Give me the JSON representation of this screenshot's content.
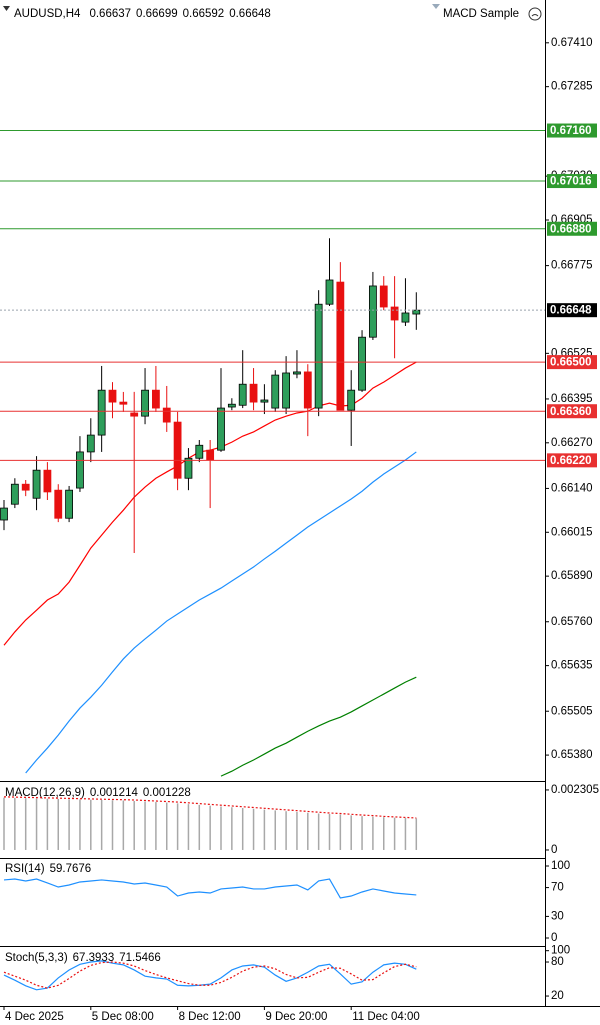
{
  "expert": "MACD Sample",
  "chart_data": [
    {
      "type": "candlestick",
      "title": "AUDUSD,H4",
      "categories": [
        "4 Dec 2025",
        null,
        null,
        null,
        null,
        null,
        null,
        null,
        "5 Dec 08:00",
        null,
        null,
        null,
        null,
        null,
        null,
        null,
        "8 Dec 12:00",
        null,
        null,
        null,
        null,
        null,
        null,
        null,
        "9 Dec 20:00",
        null,
        null,
        null,
        null,
        null,
        null,
        null,
        "11 Dec 04:00",
        null,
        null,
        null,
        null,
        null,
        null
      ],
      "open": [
        0.6605,
        0.66095,
        0.66152,
        0.66112,
        0.66192,
        0.66135,
        0.66055,
        0.66141,
        0.66244,
        0.66292,
        0.6642,
        0.66386,
        0.66355,
        0.66346,
        0.6642,
        0.66369,
        0.66329,
        0.66169,
        0.66226,
        0.66249,
        0.66249,
        0.66372,
        0.66377,
        0.66437,
        0.66386,
        0.66369,
        0.66369,
        0.66466,
        0.66472,
        0.66369,
        0.66665,
        0.66728,
        0.66363,
        0.6642,
        0.66571,
        0.66717,
        0.66657,
        0.66614,
        0.66637
      ],
      "high": [
        0.66107,
        0.66169,
        0.66164,
        0.66232,
        0.66215,
        0.66152,
        0.66147,
        0.66289,
        0.6634,
        0.66489,
        0.66443,
        0.66415,
        0.66415,
        0.66483,
        0.66489,
        0.66432,
        0.66358,
        0.66255,
        0.66278,
        0.66278,
        0.66483,
        0.66397,
        0.66534,
        0.66483,
        0.66437,
        0.66477,
        0.66517,
        0.66534,
        0.66494,
        0.66705,
        0.66853,
        0.66785,
        0.66477,
        0.66591,
        0.66757,
        0.66745,
        0.66745,
        0.66739,
        0.66699
      ],
      "low": [
        0.66021,
        0.66084,
        0.66118,
        0.66078,
        0.66107,
        0.66044,
        0.66044,
        0.6613,
        0.66215,
        0.66244,
        0.6634,
        0.66358,
        0.65956,
        0.66323,
        0.66358,
        0.66301,
        0.66135,
        0.66135,
        0.66215,
        0.66084,
        0.66244,
        0.66363,
        0.66369,
        0.66363,
        0.66352,
        0.66358,
        0.66352,
        0.66454,
        0.66289,
        0.66346,
        0.6666,
        0.66363,
        0.66261,
        0.66415,
        0.66563,
        0.66648,
        0.66511,
        0.66603,
        0.66592
      ],
      "close": [
        0.66084,
        0.66152,
        0.66135,
        0.66192,
        0.6613,
        0.66055,
        0.66135,
        0.66244,
        0.66292,
        0.6642,
        0.66386,
        0.6638,
        0.66346,
        0.6642,
        0.66369,
        0.66329,
        0.66169,
        0.66226,
        0.66263,
        0.66221,
        0.66369,
        0.6638,
        0.66437,
        0.66386,
        0.66392,
        0.66463,
        0.66469,
        0.66472,
        0.66369,
        0.66665,
        0.66734,
        0.66363,
        0.6642,
        0.66571,
        0.66717,
        0.66657,
        0.6662,
        0.6664,
        0.66648
      ],
      "bull_color": "#2e9e5b",
      "bear_color": "#e81010",
      "series": [
        {
          "color": "#ff0000",
          "values": [
            0.65693,
            0.65731,
            0.65765,
            0.65793,
            0.65822,
            0.65839,
            0.65873,
            0.65921,
            0.6597,
            0.66007,
            0.66044,
            0.66078,
            0.66115,
            0.66144,
            0.66169,
            0.66187,
            0.66204,
            0.66226,
            0.66244,
            0.66249,
            0.66258,
            0.66272,
            0.66289,
            0.66301,
            0.66318,
            0.66335,
            0.66346,
            0.66355,
            0.6636,
            0.66375,
            0.66383,
            0.66375,
            0.66377,
            0.66397,
            0.66426,
            0.66443,
            0.66463,
            0.66483,
            0.665
          ]
        },
        {
          "color": "#1e90ff",
          "values": [
            null,
            null,
            0.65329,
            0.65366,
            0.654,
            0.65437,
            0.65477,
            0.65514,
            0.65545,
            0.65579,
            0.65617,
            0.65654,
            0.65685,
            0.65711,
            0.65736,
            0.65762,
            0.65782,
            0.65802,
            0.65822,
            0.65839,
            0.65856,
            0.65876,
            0.65896,
            0.65916,
            0.65939,
            0.65961,
            0.65984,
            0.66007,
            0.6603,
            0.6605,
            0.6607,
            0.6609,
            0.6611,
            0.66132,
            0.66158,
            0.66181,
            0.66201,
            0.66221,
            0.66244
          ]
        },
        {
          "color": "#008000",
          "values": [
            null,
            null,
            null,
            null,
            null,
            null,
            null,
            null,
            null,
            null,
            null,
            null,
            null,
            null,
            null,
            null,
            null,
            null,
            null,
            null,
            0.6532,
            0.65334,
            0.65351,
            0.65366,
            0.65383,
            0.654,
            0.65414,
            0.65431,
            0.65448,
            0.65463,
            0.65477,
            0.65488,
            0.65503,
            0.6552,
            0.65537,
            0.65554,
            0.65571,
            0.65588,
            0.65602
          ]
        }
      ],
      "levels": [
        {
          "value": 0.6716,
          "label": "0.67160",
          "color": "#2e9a2e"
        },
        {
          "value": 0.67016,
          "label": "0.67016",
          "color": "#2e9a2e"
        },
        {
          "value": 0.6688,
          "label": "0.66880",
          "color": "#2e9a2e"
        },
        {
          "value": 0.665,
          "label": "0.66500",
          "color": "#e83030"
        },
        {
          "value": 0.6636,
          "label": "0.66360",
          "color": "#e83030"
        },
        {
          "value": 0.6622,
          "label": "0.66220",
          "color": "#e83030"
        }
      ],
      "ylim": [
        0.65309,
        0.67532
      ],
      "yticks": [
        {
          "value": 0.6741,
          "label": "0.67410"
        },
        0.67285,
        {
          "value": 0.6703,
          "label": "0.67030"
        },
        0.66905,
        0.66775,
        0.66525,
        0.66395,
        {
          "value": 0.6627,
          "label": "0.66270"
        },
        {
          "value": 0.6614,
          "label": "0.66140"
        },
        0.66015,
        {
          "value": 0.6589,
          "label": "0.65890"
        },
        {
          "value": 0.6576,
          "label": "0.65760"
        },
        0.65635,
        0.65505,
        {
          "value": 0.6538,
          "label": "0.65380"
        }
      ]
    },
    {
      "type": "bar",
      "title": "MACD(12,26,9)",
      "color": "#a8a8a8",
      "values": [
        0.00201,
        0.002,
        0.00199,
        0.00198,
        0.00197,
        0.00196,
        0.00195,
        0.00194,
        0.00193,
        0.00192,
        0.00191,
        0.0019,
        0.00188,
        0.00186,
        0.00184,
        0.00182,
        0.00179,
        0.00176,
        0.00173,
        0.0017,
        0.00167,
        0.00164,
        0.00161,
        0.00158,
        0.00155,
        0.00152,
        0.00149,
        0.00146,
        0.00143,
        0.0014,
        0.00138,
        0.00136,
        0.00133,
        0.0013,
        0.00128,
        0.00126,
        0.00124,
        0.00123,
        0.001214
      ],
      "series": [
        {
          "color": "#e81010",
          "dashed": true,
          "values": [
            0.00204,
            0.00203,
            0.00202,
            0.00201,
            0.002,
            0.00199,
            0.00198,
            0.00197,
            0.00196,
            0.00195,
            0.00194,
            0.00193,
            0.00192,
            0.0019,
            0.00188,
            0.00186,
            0.00184,
            0.00181,
            0.00178,
            0.00175,
            0.00172,
            0.00169,
            0.00166,
            0.00163,
            0.0016,
            0.00157,
            0.00154,
            0.00151,
            0.00148,
            0.00145,
            0.00142,
            0.0014,
            0.00137,
            0.00134,
            0.00132,
            0.00129,
            0.00127,
            0.00125,
            0.001228
          ]
        }
      ],
      "ylim": [
        -0.00027,
        0.00261
      ],
      "yticks": [
        0,
        0.002305
      ]
    },
    {
      "type": "line",
      "title": "RSI(14)",
      "series": [
        {
          "color": "#1e90ff",
          "values": [
            80.6,
            81.9,
            79.2,
            81.9,
            76.4,
            70.8,
            73.6,
            77.8,
            79.2,
            80.6,
            79.2,
            77.8,
            75.0,
            76.4,
            73.6,
            70.8,
            58.3,
            62.5,
            63.9,
            62.5,
            68.1,
            69.4,
            70.8,
            68.1,
            68.1,
            70.8,
            72.2,
            73.6,
            66.7,
            79.2,
            81.9,
            55.6,
            58.3,
            63.9,
            68.1,
            65.3,
            62.5,
            61.1,
            59.7676
          ]
        }
      ],
      "ylim": [
        -9.7,
        109.7
      ],
      "yticks": [
        100,
        70,
        30,
        0
      ]
    },
    {
      "type": "line",
      "title": "Stoch(5,3,3)",
      "series": [
        {
          "color": "#1e90ff",
          "values": [
            57,
            48,
            38,
            31,
            34,
            52,
            66,
            76,
            80,
            82,
            78,
            75,
            66,
            55,
            52,
            50,
            39,
            38,
            39,
            41,
            52,
            66,
            73,
            75,
            71,
            57,
            46,
            52,
            62,
            73,
            76,
            59,
            41,
            45,
            62,
            75,
            78,
            76,
            67.3933
          ]
        },
        {
          "color": "#e81010",
          "dashed": true,
          "values": [
            62,
            55,
            48,
            39,
            34,
            39,
            51,
            64,
            74,
            79,
            80,
            78,
            73,
            65,
            58,
            52,
            47,
            42,
            39,
            39,
            44,
            53,
            64,
            71,
            73,
            68,
            58,
            52,
            53,
            62,
            70,
            69,
            59,
            48,
            49,
            61,
            72,
            76,
            71.5466
          ]
        }
      ],
      "ylim": [
        4.2,
        106.5
      ],
      "yticks": [
        100,
        80,
        20
      ]
    }
  ]
}
